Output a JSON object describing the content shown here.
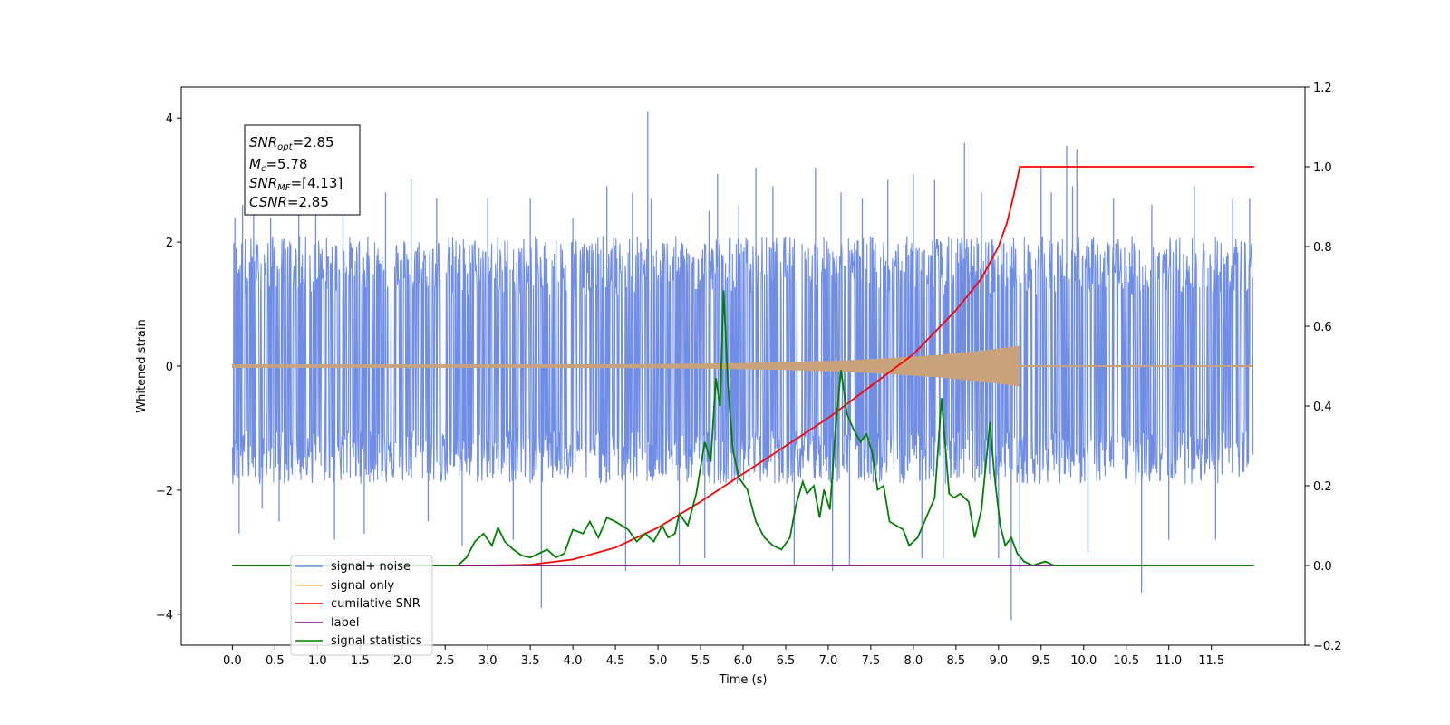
{
  "chart_data": {
    "type": "line",
    "xlabel": "Time (s)",
    "ylabel": "Whitened strain",
    "xlim": [
      -0.6,
      12.6
    ],
    "ylim": [
      -4.5,
      4.5
    ],
    "y2lim": [
      -0.2,
      1.2
    ],
    "x_ticks": [
      0.0,
      0.5,
      1.0,
      1.5,
      2.0,
      2.5,
      3.0,
      3.5,
      4.0,
      4.5,
      5.0,
      5.5,
      6.0,
      6.5,
      7.0,
      7.5,
      8.0,
      8.5,
      9.0,
      9.5,
      10.0,
      10.5,
      11.0,
      11.5
    ],
    "x_tick_labels": [
      "0.0",
      "0.5",
      "1.0",
      "1.5",
      "2.0",
      "2.5",
      "3.0",
      "3.5",
      "4.0",
      "4.5",
      "5.0",
      "5.5",
      "6.0",
      "6.5",
      "7.0",
      "7.5",
      "8.0",
      "8.5",
      "9.0",
      "9.5",
      "10.0",
      "10.5",
      "11.0",
      "11.5"
    ],
    "y_ticks": [
      -4,
      -2,
      0,
      2,
      4
    ],
    "y_tick_labels": [
      "−4",
      "−2",
      "0",
      "2",
      "4"
    ],
    "y2_ticks": [
      -0.2,
      0.0,
      0.2,
      0.4,
      0.6,
      0.8,
      1.0,
      1.2
    ],
    "y2_tick_labels": [
      "−0.2",
      "0.0",
      "0.2",
      "0.4",
      "0.6",
      "0.8",
      "1.0",
      "1.2"
    ],
    "annotation": {
      "lines": [
        {
          "base": "SNR",
          "sub": "opt",
          "value": "=2.85"
        },
        {
          "base": "M",
          "sub": "c",
          "value": "=5.78"
        },
        {
          "base": "SNR",
          "sub": "MF",
          "value": "=[4.13]"
        },
        {
          "base": "CSNR",
          "sub": "",
          "value": "=2.85"
        }
      ]
    },
    "legend": {
      "placement": "lower-left",
      "entries": [
        "signal+ noise",
        "signal only",
        "cumilative SNR",
        "label",
        "signal statistics"
      ]
    },
    "series": [
      {
        "name": "signal+ noise",
        "axis": "left",
        "color": "#6f8de6",
        "x_range": [
          0.0,
          11.99
        ],
        "band": [
          -1.9,
          2.1
        ],
        "spikes": [
          [
            0.03,
            2.4
          ],
          [
            0.08,
            -2.7
          ],
          [
            0.12,
            2.6
          ],
          [
            0.25,
            2.7
          ],
          [
            0.35,
            -2.3
          ],
          [
            0.45,
            2.4
          ],
          [
            0.55,
            -2.5
          ],
          [
            0.78,
            3.4
          ],
          [
            0.98,
            3.2
          ],
          [
            1.2,
            -2.8
          ],
          [
            1.3,
            2.9
          ],
          [
            1.55,
            -2.7
          ],
          [
            1.8,
            2.8
          ],
          [
            2.1,
            3.0
          ],
          [
            2.3,
            -2.5
          ],
          [
            2.4,
            2.7
          ],
          [
            2.7,
            -2.9
          ],
          [
            3.0,
            2.7
          ],
          [
            3.3,
            -2.8
          ],
          [
            3.5,
            2.7
          ],
          [
            3.63,
            -3.9
          ],
          [
            4.0,
            2.4
          ],
          [
            4.4,
            2.9
          ],
          [
            4.62,
            -3.3
          ],
          [
            4.7,
            2.8
          ],
          [
            4.88,
            4.1
          ],
          [
            4.92,
            2.7
          ],
          [
            5.25,
            -3.2
          ],
          [
            5.55,
            -3.1
          ],
          [
            5.6,
            2.5
          ],
          [
            5.7,
            3.1
          ],
          [
            5.95,
            2.6
          ],
          [
            6.15,
            3.2
          ],
          [
            6.35,
            2.9
          ],
          [
            6.6,
            -3.2
          ],
          [
            6.85,
            3.2
          ],
          [
            7.05,
            -3.3
          ],
          [
            7.15,
            2.8
          ],
          [
            7.25,
            -3.2
          ],
          [
            7.4,
            2.7
          ],
          [
            7.7,
            3.0
          ],
          [
            8.0,
            3.1
          ],
          [
            8.1,
            -3.1
          ],
          [
            8.25,
            3.0
          ],
          [
            8.35,
            -3.1
          ],
          [
            8.6,
            3.6
          ],
          [
            8.8,
            2.8
          ],
          [
            9.0,
            -3.1
          ],
          [
            9.15,
            -4.1
          ],
          [
            9.25,
            -3.3
          ],
          [
            9.5,
            3.2
          ],
          [
            9.62,
            2.8
          ],
          [
            9.8,
            3.55
          ],
          [
            9.87,
            2.9
          ],
          [
            9.92,
            3.5
          ],
          [
            10.05,
            -3.0
          ],
          [
            10.35,
            2.7
          ],
          [
            10.68,
            -3.65
          ],
          [
            10.8,
            2.6
          ],
          [
            11.0,
            -2.8
          ],
          [
            11.3,
            2.9
          ],
          [
            11.55,
            -2.8
          ],
          [
            11.75,
            2.7
          ],
          [
            11.95,
            2.7
          ]
        ]
      },
      {
        "name": "signal only",
        "axis": "left",
        "color": "#c8a27a",
        "note": "chirp",
        "x_range": [
          0.0,
          9.24
        ],
        "amplitude_start": 0.02,
        "amplitude_end": 0.32
      },
      {
        "name": "cumilative SNR",
        "axis": "right",
        "color": "#ff0000",
        "x": [
          0.0,
          2.5,
          3.0,
          3.5,
          4.0,
          4.5,
          5.0,
          5.5,
          6.0,
          6.5,
          7.0,
          7.5,
          8.0,
          8.5,
          8.8,
          9.0,
          9.1,
          9.18,
          9.23,
          9.25,
          12.0
        ],
        "y": [
          0.0,
          0.0,
          0.0,
          0.002,
          0.015,
          0.045,
          0.095,
          0.16,
          0.23,
          0.3,
          0.37,
          0.45,
          0.53,
          0.64,
          0.72,
          0.8,
          0.86,
          0.93,
          0.98,
          1.0,
          1.0
        ]
      },
      {
        "name": "label",
        "axis": "right",
        "color": "#800080",
        "x": [
          0.0,
          12.0
        ],
        "y": [
          0.0,
          0.0
        ]
      },
      {
        "name": "signal statistics",
        "axis": "right",
        "color": "#008000",
        "x": [
          0.0,
          2.5,
          2.65,
          2.75,
          2.85,
          2.95,
          3.05,
          3.12,
          3.2,
          3.3,
          3.4,
          3.5,
          3.6,
          3.7,
          3.8,
          3.9,
          4.0,
          4.12,
          4.2,
          4.3,
          4.4,
          4.5,
          4.65,
          4.75,
          4.85,
          4.95,
          5.05,
          5.12,
          5.2,
          5.25,
          5.35,
          5.45,
          5.55,
          5.62,
          5.68,
          5.73,
          5.77,
          5.82,
          5.88,
          5.95,
          6.05,
          6.15,
          6.25,
          6.35,
          6.45,
          6.55,
          6.62,
          6.7,
          6.75,
          6.83,
          6.9,
          6.95,
          7.02,
          7.08,
          7.15,
          7.22,
          7.3,
          7.38,
          7.45,
          7.52,
          7.58,
          7.65,
          7.72,
          7.8,
          7.88,
          7.95,
          8.05,
          8.15,
          8.25,
          8.33,
          8.42,
          8.48,
          8.55,
          8.65,
          8.72,
          8.8,
          8.9,
          8.95,
          9.02,
          9.08,
          9.15,
          9.22,
          9.3,
          9.4,
          9.55,
          9.65,
          9.75,
          10.0,
          12.0
        ],
        "y": [
          0.0,
          0.0,
          0.0,
          0.02,
          0.06,
          0.08,
          0.05,
          0.095,
          0.06,
          0.04,
          0.025,
          0.02,
          0.03,
          0.04,
          0.02,
          0.03,
          0.09,
          0.08,
          0.11,
          0.07,
          0.12,
          0.11,
          0.09,
          0.06,
          0.08,
          0.06,
          0.1,
          0.07,
          0.08,
          0.13,
          0.1,
          0.18,
          0.31,
          0.26,
          0.47,
          0.4,
          0.69,
          0.46,
          0.29,
          0.22,
          0.19,
          0.11,
          0.07,
          0.05,
          0.04,
          0.07,
          0.15,
          0.21,
          0.18,
          0.2,
          0.12,
          0.19,
          0.14,
          0.33,
          0.49,
          0.38,
          0.34,
          0.31,
          0.33,
          0.28,
          0.19,
          0.2,
          0.11,
          0.1,
          0.09,
          0.05,
          0.07,
          0.12,
          0.17,
          0.42,
          0.18,
          0.17,
          0.18,
          0.16,
          0.07,
          0.14,
          0.36,
          0.23,
          0.1,
          0.05,
          0.07,
          0.03,
          0.01,
          0.0,
          0.01,
          0.0,
          0.0,
          0.0,
          0.0
        ]
      }
    ]
  }
}
